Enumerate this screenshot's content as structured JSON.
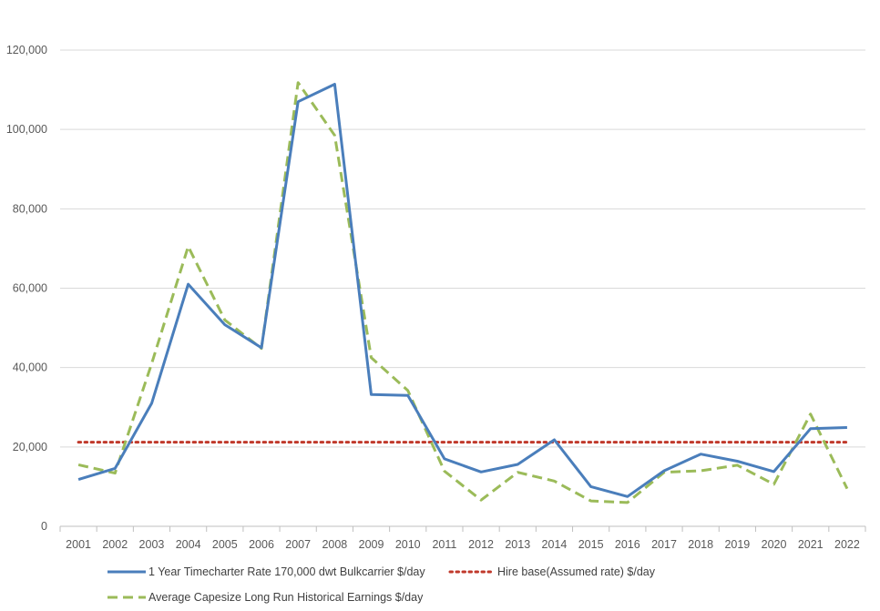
{
  "chart_data": {
    "type": "line",
    "title": "",
    "xlabel": "",
    "ylabel": "",
    "ylim": [
      0,
      120000
    ],
    "yticks": [
      0,
      20000,
      40000,
      60000,
      80000,
      100000,
      120000
    ],
    "ytick_labels": [
      "0",
      "20,000",
      "40,000",
      "60,000",
      "80,000",
      "100,000",
      "120,000"
    ],
    "grid": "horizontal",
    "legend_position": "bottom",
    "categories": [
      "2001",
      "2002",
      "2003",
      "2004",
      "2005",
      "2006",
      "2007",
      "2008",
      "2009",
      "2010",
      "2011",
      "2012",
      "2013",
      "2014",
      "2015",
      "2016",
      "2017",
      "2018",
      "2019",
      "2020",
      "2021",
      "2022"
    ],
    "series": [
      {
        "name": "1 Year Timecharter Rate 170,000 dwt Bulkcarrier $/day",
        "color": "#4a7ebb",
        "style": "solid",
        "values": [
          11800,
          14600,
          31000,
          61000,
          50800,
          45000,
          107000,
          111400,
          33200,
          33000,
          17000,
          13700,
          15600,
          21800,
          10000,
          7500,
          14000,
          18200,
          16400,
          13800,
          24600,
          24900
        ]
      },
      {
        "name": "Hire base(Assumed rate) $/day",
        "color": "#c0392b",
        "style": "dotted",
        "values": [
          21200,
          21200,
          21200,
          21200,
          21200,
          21200,
          21200,
          21200,
          21200,
          21200,
          21200,
          21200,
          21200,
          21200,
          21200,
          21200,
          21200,
          21200,
          21200,
          21200,
          21200,
          21200
        ]
      },
      {
        "name": "Average Capesize Long Run Historical Earnings $/day",
        "color": "#9bbb59",
        "style": "dashed",
        "values": [
          15500,
          13400,
          41000,
          70500,
          52000,
          44800,
          111800,
          98500,
          42500,
          34200,
          13900,
          6600,
          13600,
          11400,
          6400,
          6000,
          13600,
          14000,
          15400,
          10600,
          28300,
          9500
        ]
      }
    ]
  }
}
